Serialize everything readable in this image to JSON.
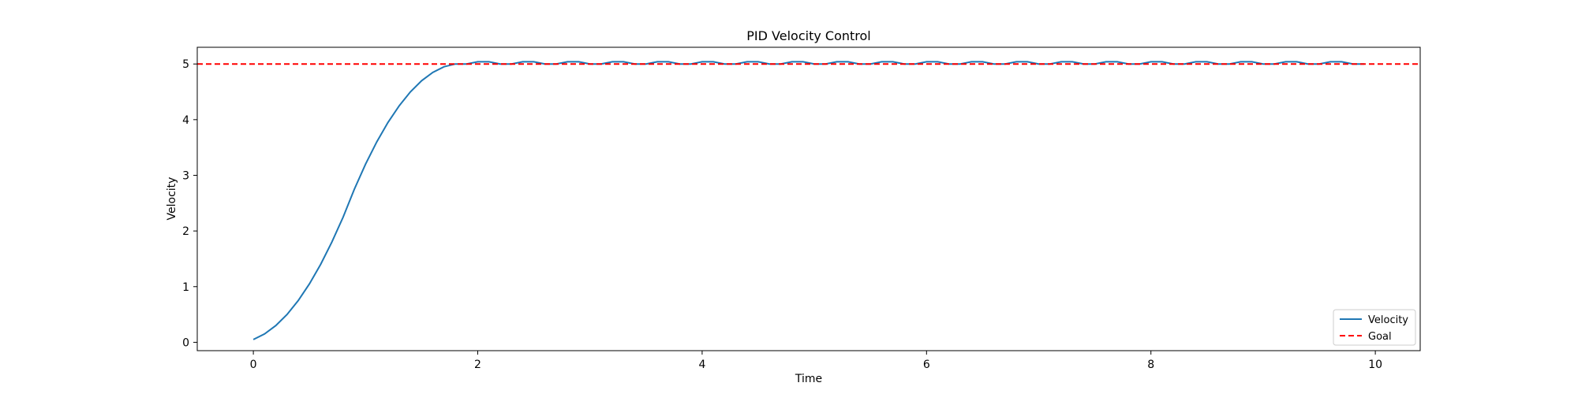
{
  "chart_data": {
    "type": "line",
    "title": "PID Velocity Control",
    "xlabel": "Time",
    "ylabel": "Velocity",
    "xlim": [
      -0.5,
      10.4
    ],
    "ylim": [
      -0.15,
      5.3
    ],
    "xticks": [
      0,
      2,
      4,
      6,
      8,
      10
    ],
    "yticks": [
      0,
      1,
      2,
      3,
      4,
      5
    ],
    "grid": false,
    "legend_position": "lower-right",
    "series": [
      {
        "name": "Velocity",
        "color": "#1f77b4",
        "style": "solid",
        "x": [
          0.0,
          0.1,
          0.2,
          0.3,
          0.4,
          0.5,
          0.6,
          0.7,
          0.8,
          0.9,
          1.0,
          1.1,
          1.2,
          1.3,
          1.4,
          1.5,
          1.6,
          1.7,
          1.8,
          1.9,
          2.0,
          2.1,
          2.2,
          2.3,
          2.4,
          2.5,
          2.6,
          2.7,
          2.8,
          2.9,
          3.0,
          3.1,
          3.2,
          3.3,
          3.4,
          3.5,
          3.6,
          3.7,
          3.8,
          3.9,
          4.0,
          4.1,
          4.2,
          4.3,
          4.4,
          4.5,
          4.6,
          4.7,
          4.8,
          4.9,
          5.0,
          5.1,
          5.2,
          5.3,
          5.4,
          5.5,
          5.6,
          5.7,
          5.8,
          5.9,
          6.0,
          6.1,
          6.2,
          6.3,
          6.4,
          6.5,
          6.6,
          6.7,
          6.8,
          6.9,
          7.0,
          7.1,
          7.2,
          7.3,
          7.4,
          7.5,
          7.6,
          7.7,
          7.8,
          7.9,
          8.0,
          8.1,
          8.2,
          8.3,
          8.4,
          8.5,
          8.6,
          8.7,
          8.8,
          8.9,
          9.0,
          9.1,
          9.2,
          9.3,
          9.4,
          9.5,
          9.6,
          9.7,
          9.8,
          9.9
        ],
        "y": [
          0.05,
          0.15,
          0.3,
          0.5,
          0.75,
          1.05,
          1.4,
          1.8,
          2.25,
          2.75,
          3.2,
          3.6,
          3.95,
          4.25,
          4.5,
          4.7,
          4.85,
          4.95,
          5.0,
          5.0,
          5.04,
          5.04,
          5.0,
          5.0,
          5.04,
          5.04,
          5.0,
          5.0,
          5.04,
          5.04,
          5.0,
          5.0,
          5.04,
          5.04,
          5.0,
          5.0,
          5.04,
          5.04,
          5.0,
          5.0,
          5.04,
          5.04,
          5.0,
          5.0,
          5.04,
          5.04,
          5.0,
          5.0,
          5.04,
          5.04,
          5.0,
          5.0,
          5.04,
          5.04,
          5.0,
          5.0,
          5.04,
          5.04,
          5.0,
          5.0,
          5.04,
          5.04,
          5.0,
          5.0,
          5.04,
          5.04,
          5.0,
          5.0,
          5.04,
          5.04,
          5.0,
          5.0,
          5.04,
          5.04,
          5.0,
          5.0,
          5.04,
          5.04,
          5.0,
          5.0,
          5.04,
          5.04,
          5.0,
          5.0,
          5.04,
          5.04,
          5.0,
          5.0,
          5.04,
          5.04,
          5.0,
          5.0,
          5.04,
          5.04,
          5.0,
          5.0,
          5.04,
          5.04,
          5.0,
          5.0
        ]
      },
      {
        "name": "Goal",
        "color": "#ff0000",
        "style": "dashed",
        "constant_y": 5
      }
    ]
  }
}
